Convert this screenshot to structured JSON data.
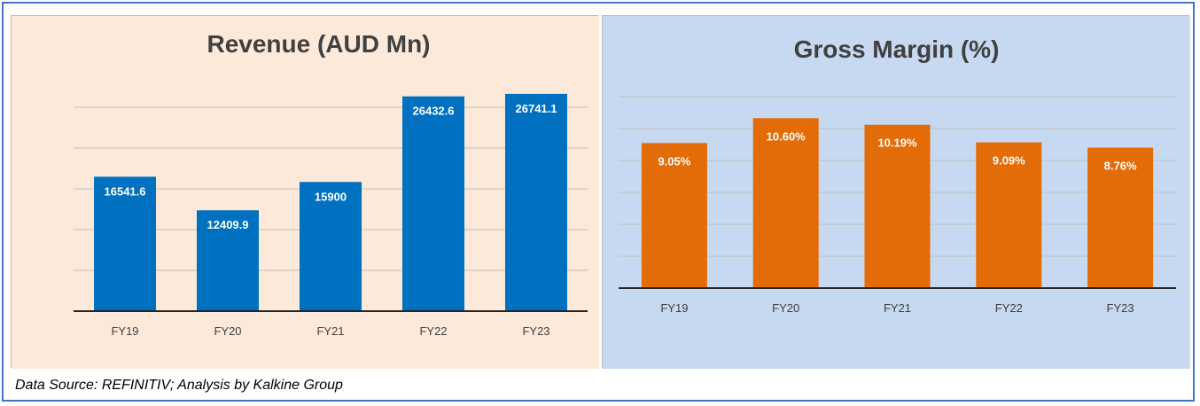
{
  "footer_text": "Data Source: REFINITIV; Analysis by Kalkine Group",
  "chart_data": [
    {
      "type": "bar",
      "title": "Revenue (AUD Mn)",
      "categories": [
        "FY19",
        "FY20",
        "FY21",
        "FY22",
        "FY23"
      ],
      "values": [
        16541.6,
        12409.9,
        15900,
        26432.6,
        26741.1
      ],
      "value_labels": [
        "16541.6",
        "12409.9",
        "15900",
        "26432.6",
        "26741.1"
      ],
      "ylim": [
        0,
        30000
      ],
      "grid": true,
      "bar_color": "#0070c0",
      "background": "#fde9d9"
    },
    {
      "type": "bar",
      "title": "Gross Margin (%)",
      "categories": [
        "FY19",
        "FY20",
        "FY21",
        "FY22",
        "FY23"
      ],
      "values": [
        9.05,
        10.6,
        10.19,
        9.09,
        8.76
      ],
      "value_labels": [
        "9.05%",
        "10.60%",
        "10.19%",
        "9.09%",
        "8.76%"
      ],
      "ylim": [
        0,
        12
      ],
      "grid": true,
      "bar_color": "#e36c09",
      "background": "#c6d9f1"
    }
  ]
}
